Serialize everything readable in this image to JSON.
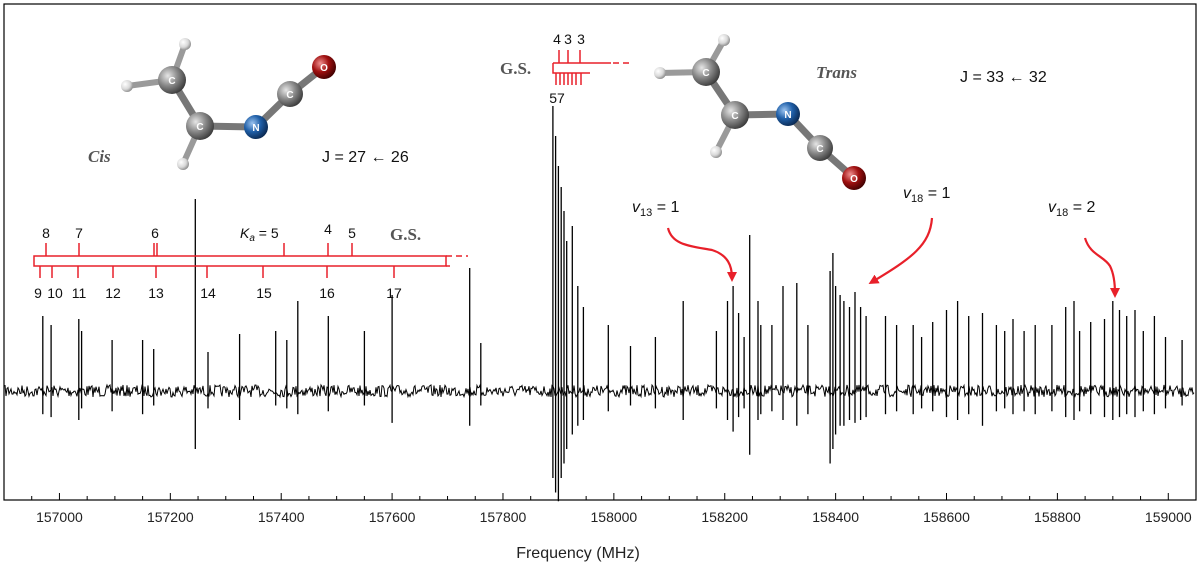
{
  "chart_data": {
    "type": "line",
    "xlabel": "Frequency (MHz)",
    "ylabel": "",
    "xlim": [
      156900,
      159050
    ],
    "ylim": [
      -1.0,
      1.0
    ],
    "xticks": [
      157000,
      157200,
      157400,
      157600,
      157800,
      158000,
      158200,
      158400,
      158600,
      158800,
      159000
    ],
    "xtick_labels": [
      "157000",
      "157200",
      "157400",
      "157600",
      "157800",
      "158000",
      "158200",
      "158400",
      "158600",
      "158800",
      "159000"
    ],
    "noise_level": 0.02,
    "lines": [
      {
        "x": 156970,
        "up": 0.25,
        "down": 0.08
      },
      {
        "x": 156985,
        "up": 0.22,
        "down": 0.09
      },
      {
        "x": 157035,
        "up": 0.24,
        "down": 0.1
      },
      {
        "x": 157040,
        "up": 0.2,
        "down": 0.06
      },
      {
        "x": 157095,
        "up": 0.17,
        "down": 0.07
      },
      {
        "x": 157150,
        "up": 0.17,
        "down": 0.08
      },
      {
        "x": 157170,
        "up": 0.14,
        "down": 0.05
      },
      {
        "x": 157245,
        "up": 0.64,
        "down": 0.2
      },
      {
        "x": 157268,
        "up": 0.13,
        "down": 0.06
      },
      {
        "x": 157325,
        "up": 0.19,
        "down": 0.1
      },
      {
        "x": 157390,
        "up": 0.2,
        "down": 0.05
      },
      {
        "x": 157410,
        "up": 0.17,
        "down": 0.06
      },
      {
        "x": 157430,
        "up": 0.3,
        "down": 0.08
      },
      {
        "x": 157485,
        "up": 0.25,
        "down": 0.07
      },
      {
        "x": 157550,
        "up": 0.2,
        "down": 0.05
      },
      {
        "x": 157600,
        "up": 0.32,
        "down": 0.11
      },
      {
        "x": 157740,
        "up": 0.41,
        "down": 0.12
      },
      {
        "x": 157760,
        "up": 0.16,
        "down": 0.05
      },
      {
        "x": 157890,
        "up": 0.95,
        "down": 0.3
      },
      {
        "x": 157895,
        "up": 0.85,
        "down": 0.35
      },
      {
        "x": 157900,
        "up": 0.75,
        "down": 0.38
      },
      {
        "x": 157905,
        "up": 0.68,
        "down": 0.3
      },
      {
        "x": 157910,
        "up": 0.6,
        "down": 0.25
      },
      {
        "x": 157915,
        "up": 0.5,
        "down": 0.2
      },
      {
        "x": 157925,
        "up": 0.55,
        "down": 0.15
      },
      {
        "x": 157935,
        "up": 0.35,
        "down": 0.12
      },
      {
        "x": 157945,
        "up": 0.28,
        "down": 0.1
      },
      {
        "x": 157990,
        "up": 0.22,
        "down": 0.07
      },
      {
        "x": 158030,
        "up": 0.15,
        "down": 0.05
      },
      {
        "x": 158075,
        "up": 0.18,
        "down": 0.06
      },
      {
        "x": 158125,
        "up": 0.3,
        "down": 0.1
      },
      {
        "x": 158185,
        "up": 0.2,
        "down": 0.06
      },
      {
        "x": 158205,
        "up": 0.3,
        "down": 0.1
      },
      {
        "x": 158215,
        "up": 0.35,
        "down": 0.14
      },
      {
        "x": 158225,
        "up": 0.26,
        "down": 0.09
      },
      {
        "x": 158235,
        "up": 0.18,
        "down": 0.06
      },
      {
        "x": 158245,
        "up": 0.52,
        "down": 0.22
      },
      {
        "x": 158260,
        "up": 0.3,
        "down": 0.1
      },
      {
        "x": 158265,
        "up": 0.22,
        "down": 0.08
      },
      {
        "x": 158285,
        "up": 0.22,
        "down": 0.07
      },
      {
        "x": 158305,
        "up": 0.35,
        "down": 0.1
      },
      {
        "x": 158330,
        "up": 0.36,
        "down": 0.12
      },
      {
        "x": 158350,
        "up": 0.22,
        "down": 0.08
      },
      {
        "x": 158390,
        "up": 0.4,
        "down": 0.25
      },
      {
        "x": 158395,
        "up": 0.46,
        "down": 0.2
      },
      {
        "x": 158400,
        "up": 0.35,
        "down": 0.15
      },
      {
        "x": 158408,
        "up": 0.32,
        "down": 0.12
      },
      {
        "x": 158415,
        "up": 0.3,
        "down": 0.12
      },
      {
        "x": 158425,
        "up": 0.28,
        "down": 0.1
      },
      {
        "x": 158435,
        "up": 0.33,
        "down": 0.11
      },
      {
        "x": 158445,
        "up": 0.28,
        "down": 0.1
      },
      {
        "x": 158455,
        "up": 0.25,
        "down": 0.09
      },
      {
        "x": 158490,
        "up": 0.25,
        "down": 0.08
      },
      {
        "x": 158510,
        "up": 0.22,
        "down": 0.07
      },
      {
        "x": 158540,
        "up": 0.22,
        "down": 0.08
      },
      {
        "x": 158555,
        "up": 0.18,
        "down": 0.06
      },
      {
        "x": 158575,
        "up": 0.23,
        "down": 0.07
      },
      {
        "x": 158600,
        "up": 0.27,
        "down": 0.09
      },
      {
        "x": 158620,
        "up": 0.3,
        "down": 0.1
      },
      {
        "x": 158640,
        "up": 0.25,
        "down": 0.08
      },
      {
        "x": 158665,
        "up": 0.26,
        "down": 0.12
      },
      {
        "x": 158690,
        "up": 0.22,
        "down": 0.07
      },
      {
        "x": 158705,
        "up": 0.2,
        "down": 0.06
      },
      {
        "x": 158720,
        "up": 0.24,
        "down": 0.08
      },
      {
        "x": 158740,
        "up": 0.2,
        "down": 0.07
      },
      {
        "x": 158760,
        "up": 0.22,
        "down": 0.08
      },
      {
        "x": 158790,
        "up": 0.22,
        "down": 0.07
      },
      {
        "x": 158815,
        "up": 0.28,
        "down": 0.09
      },
      {
        "x": 158830,
        "up": 0.3,
        "down": 0.1
      },
      {
        "x": 158840,
        "up": 0.2,
        "down": 0.07
      },
      {
        "x": 158860,
        "up": 0.23,
        "down": 0.08
      },
      {
        "x": 158885,
        "up": 0.24,
        "down": 0.09
      },
      {
        "x": 158900,
        "up": 0.3,
        "down": 0.1
      },
      {
        "x": 158912,
        "up": 0.27,
        "down": 0.09
      },
      {
        "x": 158925,
        "up": 0.25,
        "down": 0.08
      },
      {
        "x": 158940,
        "up": 0.27,
        "down": 0.09
      },
      {
        "x": 158955,
        "up": 0.2,
        "down": 0.07
      },
      {
        "x": 158975,
        "up": 0.25,
        "down": 0.08
      },
      {
        "x": 158995,
        "up": 0.18,
        "down": 0.06
      },
      {
        "x": 159025,
        "up": 0.17,
        "down": 0.05
      }
    ],
    "annotations": {
      "cis_label": "Cis",
      "trans_label": "Trans",
      "cis_transition": "J = 27 ← 26",
      "trans_transition": "J = 33 ← 32",
      "gs_label_cis": "G.S.",
      "gs_label_trans": "G.S.",
      "ka_label": "K",
      "ka_sub": "a",
      "ka_eq": " = 5",
      "cis_ladder_top": [
        "8",
        "7",
        "6",
        "5",
        "4",
        "5"
      ],
      "cis_ladder_bottom": [
        "9",
        "10",
        "11",
        "12",
        "13",
        "14",
        "15",
        "16",
        "17"
      ],
      "trans_ladder_top": [
        "4",
        "3",
        "3"
      ],
      "trans_ladder_bottom": "57",
      "v13_var": "v",
      "v13_sub": "13",
      "v13_eq": " = 1",
      "v18a_var": "v",
      "v18a_sub": "18",
      "v18a_eq": " = 1",
      "v18b_var": "v",
      "v18b_sub": "18",
      "v18b_eq": " = 2"
    },
    "grid": false,
    "colors": {
      "spectrum": "#000000",
      "ladder": "#e8202a",
      "arrow": "#e8202a",
      "carbon": "#8a8a8a",
      "nitrogen": "#1f5fa8",
      "oxygen": "#a01010",
      "hydrogen": "#dddddd"
    }
  }
}
